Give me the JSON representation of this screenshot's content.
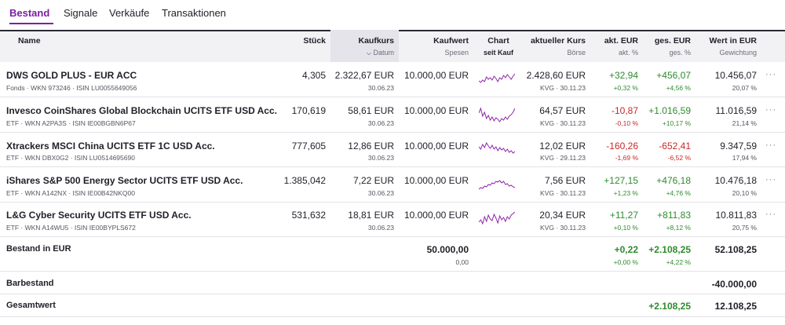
{
  "tabs": [
    {
      "label": "Bestand",
      "active": true
    },
    {
      "label": "Signale",
      "active": false
    },
    {
      "label": "Verkäufe",
      "active": false
    },
    {
      "label": "Transaktionen",
      "active": false
    }
  ],
  "columns": {
    "name": "Name",
    "stueck": "Stück",
    "kaufkurs": "Kaufkurs",
    "kaufkurs_sub": "Datum",
    "kaufwert": "Kaufwert",
    "kaufwert_sub": "Spesen",
    "chart": "Chart",
    "chart_sub": "seit Kauf",
    "kurs": "aktueller Kurs",
    "kurs_sub": "Börse",
    "akt": "akt. EUR",
    "akt_sub": "akt. %",
    "ges": "ges. EUR",
    "ges_sub": "ges. %",
    "wert": "Wert in EUR",
    "wert_sub": "Gewichtung"
  },
  "holdings": [
    {
      "name": "DWS GOLD PLUS - EUR ACC",
      "sub": "Fonds · WKN 973246 · ISIN LU0055649056",
      "stueck": "4,305",
      "kaufkurs": "2.322,67 EUR",
      "datum": "30.06.23",
      "kaufwert": "10.000,00 EUR",
      "kurs": "2.428,60 EUR",
      "boerse": "KVG · 30.11.23",
      "akt_eur": "+32,94",
      "akt_pct": "+0,32 %",
      "ges_eur": "+456,07",
      "ges_pct": "+4,56 %",
      "wert": "10.456,07",
      "gewichtung": "20,07 %",
      "akt_sign": "pos",
      "ges_sign": "pos",
      "spark": [
        14,
        16,
        13,
        15,
        9,
        12,
        10,
        13,
        8,
        11,
        15,
        10,
        12,
        7,
        10,
        6,
        9,
        12,
        8,
        5
      ]
    },
    {
      "name": "Invesco CoinShares Global Blockchain UCITS ETF USD Acc.",
      "sub": "ETF · WKN A2PA3S · ISIN IE00BGBN6P67",
      "stueck": "170,619",
      "kaufkurs": "58,61 EUR",
      "datum": "30.06.23",
      "kaufwert": "10.000,00 EUR",
      "kurs": "64,57 EUR",
      "boerse": "KVG · 30.11.23",
      "akt_eur": "-10,87",
      "akt_pct": "-0,10 %",
      "ges_eur": "+1.016,59",
      "ges_pct": "+10,17 %",
      "wert": "11.016,59",
      "gewichtung": "21,14 %",
      "akt_sign": "neg",
      "ges_sign": "pos",
      "spark": [
        10,
        4,
        14,
        9,
        17,
        13,
        19,
        15,
        20,
        16,
        18,
        21,
        17,
        19,
        15,
        18,
        14,
        12,
        9,
        4
      ]
    },
    {
      "name": "Xtrackers MSCI China UCITS ETF 1C USD Acc.",
      "sub": "ETF · WKN DBX0G2 · ISIN LU0514695690",
      "stueck": "777,605",
      "kaufkurs": "12,86 EUR",
      "datum": "30.06.23",
      "kaufwert": "10.000,00 EUR",
      "kurs": "12,02 EUR",
      "boerse": "KVG · 29.11.23",
      "akt_eur": "-160,26",
      "akt_pct": "-1,69 %",
      "ges_eur": "-652,41",
      "ges_pct": "-6,52 %",
      "wert": "9.347,59",
      "gewichtung": "17,94 %",
      "akt_sign": "neg",
      "ges_sign": "neg",
      "spark": [
        9,
        12,
        6,
        10,
        4,
        8,
        11,
        7,
        12,
        9,
        14,
        10,
        13,
        11,
        15,
        12,
        16,
        14,
        17,
        15
      ]
    },
    {
      "name": "iShares S&P 500 Energy Sector UCITS ETF USD Acc.",
      "sub": "ETF · WKN A142NX · ISIN IE00B42NKQ00",
      "stueck": "1.385,042",
      "kaufkurs": "7,22 EUR",
      "datum": "30.06.23",
      "kaufwert": "10.000,00 EUR",
      "kurs": "7,56 EUR",
      "boerse": "KVG · 30.11.23",
      "akt_eur": "+127,15",
      "akt_pct": "+1,23 %",
      "ges_eur": "+476,18",
      "ges_pct": "+4,76 %",
      "wert": "10.476,18",
      "gewichtung": "20,10 %",
      "akt_sign": "pos",
      "ges_sign": "pos",
      "spark": [
        18,
        16,
        17,
        14,
        15,
        12,
        13,
        10,
        11,
        8,
        9,
        7,
        10,
        8,
        12,
        11,
        14,
        13,
        15,
        16
      ]
    },
    {
      "name": "L&G Cyber Security UCITS ETF USD Acc.",
      "sub": "ETF · WKN A14WU5 · ISIN IE00BYPLS672",
      "stueck": "531,632",
      "kaufkurs": "18,81 EUR",
      "datum": "30.06.23",
      "kaufwert": "10.000,00 EUR",
      "kurs": "20,34 EUR",
      "boerse": "KVG · 30.11.23",
      "akt_eur": "+11,27",
      "akt_pct": "+0,10 %",
      "ges_eur": "+811,83",
      "ges_pct": "+8,12 %",
      "wert": "10.811,83",
      "gewichtung": "20,75 %",
      "akt_sign": "pos",
      "ges_sign": "pos",
      "spark": [
        16,
        13,
        18,
        9,
        15,
        7,
        12,
        14,
        6,
        11,
        17,
        8,
        13,
        10,
        15,
        9,
        12,
        7,
        5,
        3
      ]
    }
  ],
  "summary": {
    "bestand_label": "Bestand in EUR",
    "bestand_kaufwert": "50.000,00",
    "bestand_spesen": "0,00",
    "bestand_akt_eur": "+0,22",
    "bestand_akt_pct": "+0,00 %",
    "bestand_ges_eur": "+2.108,25",
    "bestand_ges_pct": "+4,22 %",
    "bestand_wert": "52.108,25",
    "barbestand_label": "Barbestand",
    "barbestand_wert": "-40.000,00",
    "gesamt_label": "Gesamtwert",
    "gesamt_ges_eur": "+2.108,25",
    "gesamt_wert": "12.108,25"
  },
  "colors": {
    "accent": "#7b1fa2",
    "positive": "#2e8b2e",
    "negative": "#c62828",
    "spark": "#8e24aa"
  },
  "icons": {
    "sort": "chevron-down-icon",
    "more": "more-icon",
    "more_glyph": "···"
  }
}
